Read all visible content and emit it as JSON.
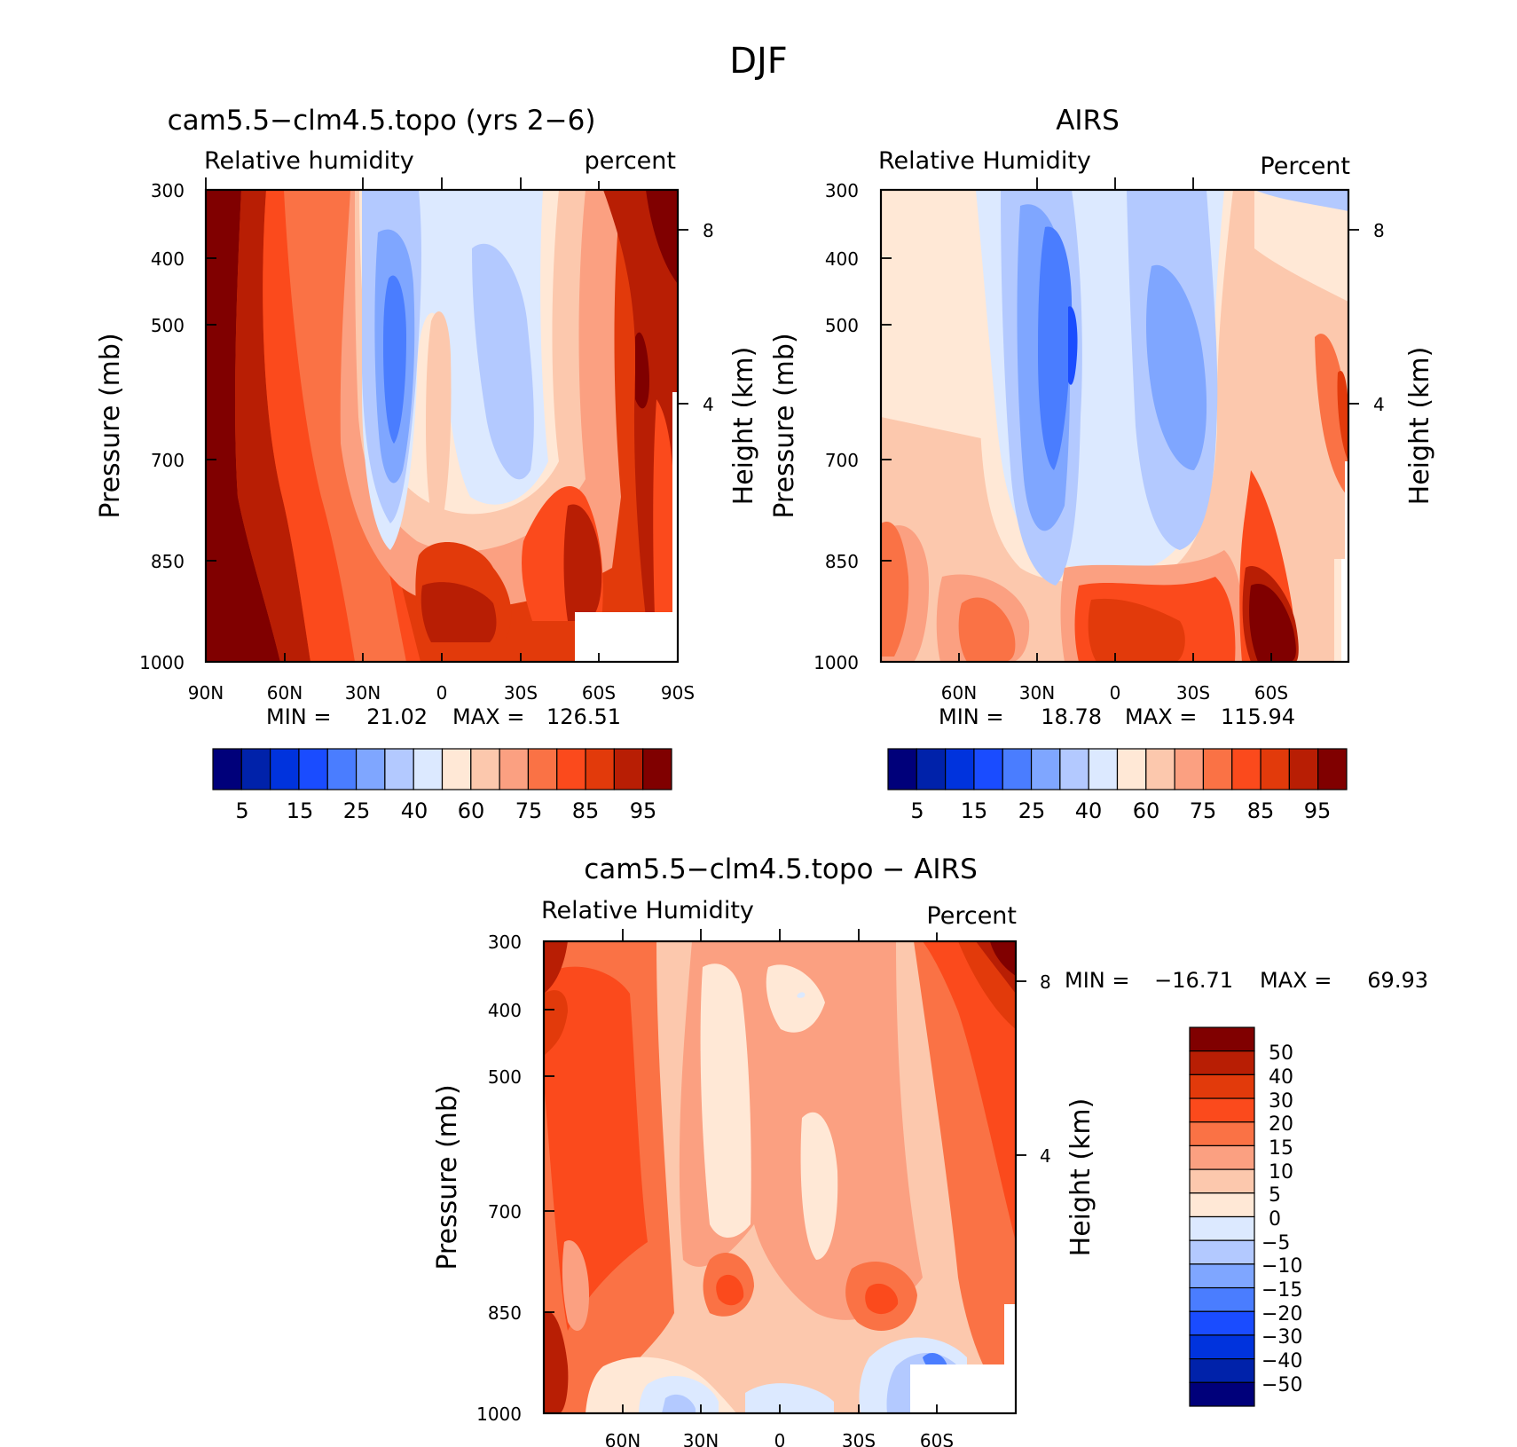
{
  "figure": {
    "title": "DJF"
  },
  "colors": {
    "abs_scale": [
      "#00007a",
      "#0022aa",
      "#0033dd",
      "#1a4cff",
      "#4a7dff",
      "#7fa6ff",
      "#b3c9ff",
      "#dce9ff",
      "#ffe8d6",
      "#fcc8ad",
      "#fba081",
      "#fa7245",
      "#fb4a1c",
      "#e23a0b",
      "#b81e04",
      "#800000"
    ],
    "diff_scale": [
      "#800000",
      "#b81e04",
      "#e23a0b",
      "#fb4a1c",
      "#fa7245",
      "#fba081",
      "#fcc8ad",
      "#ffe8d6",
      "#dce9ff",
      "#b3c9ff",
      "#7fa6ff",
      "#4a7dff",
      "#1a4cff",
      "#0033dd",
      "#0022aa",
      "#00007a"
    ]
  },
  "chart_data": [
    {
      "type": "heatmap",
      "id": "model",
      "title": "cam5.5−clm4.5.topo (yrs 2−6)",
      "left_label": "Relative humidity",
      "right_label": "percent",
      "ylabel": "Pressure (mb)",
      "ylabel_right": "Height (km)",
      "x_ticks": [
        "90N",
        "60N",
        "30N",
        "0",
        "30S",
        "60S",
        "90S"
      ],
      "y_ticks": [
        "300",
        "400",
        "500",
        "700",
        "850",
        "1000"
      ],
      "y_right_ticks": [
        "8",
        "4"
      ],
      "xlim": [
        90,
        -90
      ],
      "ylim": [
        1000,
        300
      ],
      "y_scale": "log",
      "stats": {
        "min_label": "MIN =",
        "min": "21.02",
        "max_label": "MAX =",
        "max": "126.51"
      },
      "colorbar_labels": [
        "5",
        "15",
        "25",
        "40",
        "60",
        "75",
        "85",
        "95"
      ]
    },
    {
      "type": "heatmap",
      "id": "obs",
      "title": "AIRS",
      "left_label": "Relative Humidity",
      "right_label": "Percent",
      "ylabel": "Pressure (mb)",
      "ylabel_right": "Height (km)",
      "x_ticks": [
        "60N",
        "30N",
        "0",
        "30S",
        "60S"
      ],
      "y_ticks": [
        "300",
        "400",
        "500",
        "700",
        "850",
        "1000"
      ],
      "y_right_ticks": [
        "8",
        "4"
      ],
      "xlim": [
        90,
        -90
      ],
      "ylim": [
        1000,
        300
      ],
      "y_scale": "log",
      "stats": {
        "min_label": "MIN =",
        "min": "18.78",
        "max_label": "MAX =",
        "max": "115.94"
      },
      "colorbar_labels": [
        "5",
        "15",
        "25",
        "40",
        "60",
        "75",
        "85",
        "95"
      ]
    },
    {
      "type": "heatmap",
      "id": "diff",
      "title": "cam5.5−clm4.5.topo − AIRS",
      "left_label": "Relative Humidity",
      "right_label": "Percent",
      "ylabel": "Pressure (mb)",
      "ylabel_right": "Height (km)",
      "x_ticks": [
        "60N",
        "30N",
        "0",
        "30S",
        "60S"
      ],
      "y_ticks": [
        "300",
        "400",
        "500",
        "700",
        "850",
        "1000"
      ],
      "y_right_ticks": [
        "8",
        "4"
      ],
      "xlim": [
        90,
        -90
      ],
      "ylim": [
        1000,
        300
      ],
      "y_scale": "log",
      "stats": {
        "min_label": "MIN =",
        "min": "−16.71",
        "max_label": "MAX =",
        "max": "69.93"
      },
      "colorbar_labels": [
        "50",
        "40",
        "30",
        "20",
        "15",
        "10",
        "5",
        "0",
        "−5",
        "−10",
        "−15",
        "−20",
        "−30",
        "−40",
        "−50"
      ]
    }
  ]
}
